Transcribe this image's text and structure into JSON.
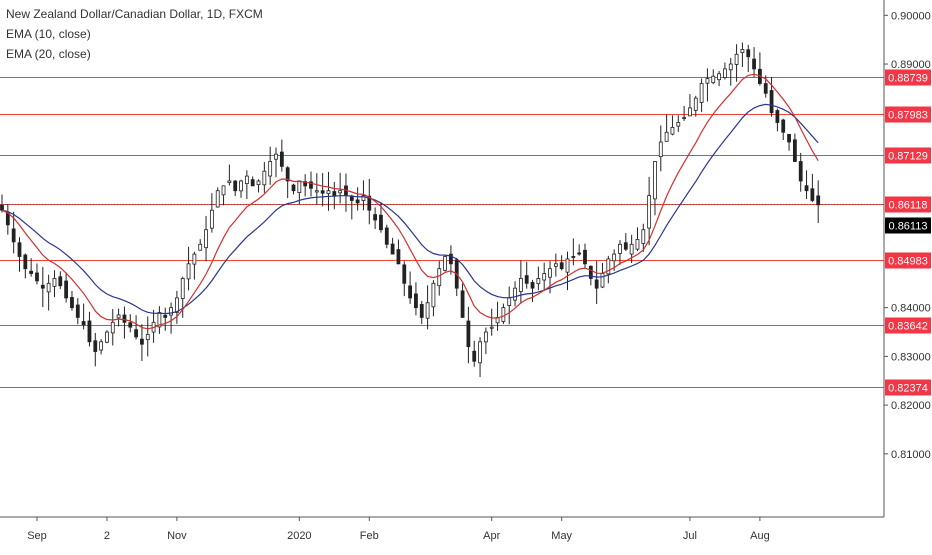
{
  "chart_data": {
    "type": "candlestick",
    "title": "New Zealand Dollar/Canadian Dollar, 1D, FXCM",
    "indicators": [
      {
        "name": "EMA (10, close)",
        "color": "#d32f2f"
      },
      {
        "name": "EMA (20, close)",
        "color": "#283593"
      }
    ],
    "ylim": [
      0.7995,
      0.9015
    ],
    "y_ticks": [
      0.9,
      0.89,
      0.84,
      0.83,
      0.82,
      0.81
    ],
    "y_tick_labels": [
      "0.90000",
      "0.89000",
      "0.84000",
      "0.83000",
      "0.82000",
      "0.81000"
    ],
    "x_tick_labels": [
      "Sep",
      "2",
      "Nov",
      "2020",
      "Feb",
      "Apr",
      "May",
      "Jul",
      "Aug"
    ],
    "x_tick_bar_index": [
      6,
      18,
      30,
      51,
      63,
      84,
      96,
      118,
      130
    ],
    "horizontal_lines": [
      0.88739,
      0.87983,
      0.87129,
      0.86118,
      0.84983,
      0.83642,
      0.82374
    ],
    "horizontal_line_labels": [
      "0.88739",
      "0.87983",
      "0.87129",
      "0.86118",
      "0.84983",
      "0.83642",
      "0.82374"
    ],
    "current_price": 0.86113,
    "current_price_label": "0.86113",
    "close_series": [
      0.86,
      0.857,
      0.8535,
      0.8505,
      0.848,
      0.847,
      0.8455,
      0.844,
      0.845,
      0.846,
      0.8445,
      0.842,
      0.84,
      0.838,
      0.8365,
      0.833,
      0.831,
      0.833,
      0.835,
      0.837,
      0.8385,
      0.837,
      0.836,
      0.834,
      0.8325,
      0.8345,
      0.837,
      0.839,
      0.838,
      0.84,
      0.842,
      0.846,
      0.849,
      0.851,
      0.853,
      0.856,
      0.86,
      0.864,
      0.865,
      0.866,
      0.864,
      0.866,
      0.867,
      0.865,
      0.866,
      0.868,
      0.87,
      0.8715,
      0.869,
      0.866,
      0.864,
      0.866,
      0.865,
      0.8645,
      0.864,
      0.8635,
      0.864,
      0.863,
      0.864,
      0.863,
      0.862,
      0.8615,
      0.863,
      0.86,
      0.858,
      0.856,
      0.853,
      0.851,
      0.849,
      0.845,
      0.842,
      0.84,
      0.838,
      0.841,
      0.845,
      0.848,
      0.8505,
      0.849,
      0.844,
      0.838,
      0.832,
      0.829,
      0.833,
      0.835,
      0.836,
      0.838,
      0.84,
      0.842,
      0.844,
      0.846,
      0.845,
      0.844,
      0.846,
      0.847,
      0.848,
      0.849,
      0.848,
      0.85,
      0.8505,
      0.851,
      0.849,
      0.846,
      0.844,
      0.847,
      0.85,
      0.851,
      0.853,
      0.852,
      0.853,
      0.854,
      0.856,
      0.863,
      0.87,
      0.874,
      0.876,
      0.877,
      0.878,
      0.879,
      0.881,
      0.883,
      0.886,
      0.887,
      0.8875,
      0.888,
      0.889,
      0.89,
      0.892,
      0.893,
      0.8915,
      0.889,
      0.886,
      0.884,
      0.88,
      0.878,
      0.876,
      0.874,
      0.87,
      0.866,
      0.864,
      0.862,
      0.8611
    ]
  }
}
